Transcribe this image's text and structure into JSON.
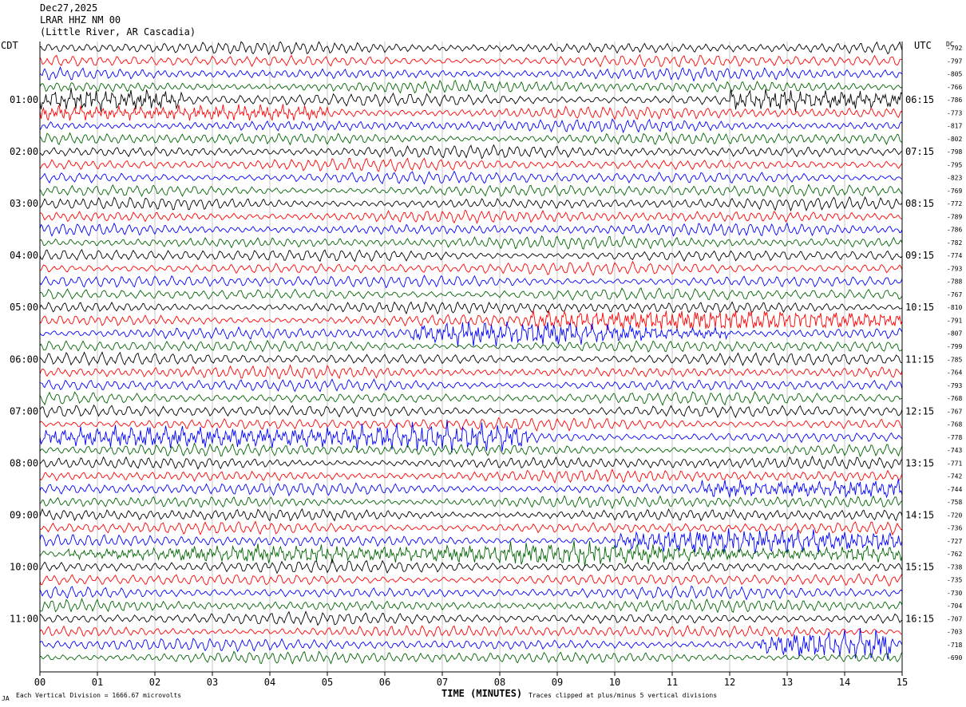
{
  "header": {
    "date": "Dec27,2025",
    "station": "LRAR HHZ NM 00",
    "location": "(Little River, AR Cascadia)"
  },
  "footer": {
    "scale_note": "Each Vertical Division = 1666.67 microvolts",
    "clip_note": "Traces clipped at plus/minus 5 vertical divisions",
    "corner_mark": "JA"
  },
  "colors": {
    "trace_cycle": [
      "#000000",
      "#ff0000",
      "#0000ff",
      "#006400"
    ],
    "grid": "#a0a0a0"
  },
  "chart_data": {
    "type": "line",
    "title": "LRAR HHZ NM 00",
    "xlabel": "TIME (MINUTES)",
    "xlim": [
      0,
      15
    ],
    "x_ticks": [
      "00",
      "01",
      "02",
      "03",
      "04",
      "05",
      "06",
      "07",
      "08",
      "09",
      "10",
      "11",
      "12",
      "13",
      "14",
      "15"
    ],
    "left_axis_label": "CDT",
    "right_axis_label": "UTC",
    "dc_label": "DC",
    "left_hour_labels": [
      "01:00",
      "02:00",
      "03:00",
      "04:00",
      "05:00",
      "06:00",
      "07:00",
      "08:00",
      "09:00",
      "10:00",
      "11:00"
    ],
    "right_hour_labels": [
      "06:15",
      "07:15",
      "08:15",
      "09:15",
      "10:15",
      "11:15",
      "12:15",
      "13:15",
      "14:15",
      "15:15",
      "16:15"
    ],
    "rows_per_hour": 4,
    "dc_offsets": [
      -792,
      -797,
      -805,
      -766,
      -786,
      -773,
      -817,
      -802,
      -798,
      -795,
      -823,
      -769,
      -772,
      -789,
      -786,
      -782,
      -774,
      -793,
      -788,
      -767,
      -810,
      -791,
      -807,
      -799,
      -785,
      -764,
      -793,
      -768,
      -767,
      -768,
      -778,
      -743,
      -771,
      -742,
      -744,
      -758,
      -720,
      -736,
      -727,
      -762,
      -738,
      -735,
      -730,
      -704,
      -707,
      -703,
      -718,
      -690
    ],
    "trace_colors": [
      "black",
      "red",
      "blue",
      "green"
    ],
    "events": [
      {
        "row": 4,
        "start_min": 0.0,
        "end_min": 2.5,
        "amp": 1.6
      },
      {
        "row": 5,
        "start_min": 0.0,
        "end_min": 5.0,
        "amp": 1.3
      },
      {
        "row": 4,
        "start_min": 12.0,
        "end_min": 15.0,
        "amp": 1.7
      },
      {
        "row": 21,
        "start_min": 8.5,
        "end_min": 15.0,
        "amp": 1.6
      },
      {
        "row": 22,
        "start_min": 6.5,
        "end_min": 12.0,
        "amp": 1.6
      },
      {
        "row": 30,
        "start_min": 0.0,
        "end_min": 8.5,
        "amp": 1.7
      },
      {
        "row": 34,
        "start_min": 11.5,
        "end_min": 15.0,
        "amp": 1.5
      },
      {
        "row": 38,
        "start_min": 10.0,
        "end_min": 15.0,
        "amp": 1.6
      },
      {
        "row": 39,
        "start_min": 0.5,
        "end_min": 15.0,
        "amp": 1.4
      },
      {
        "row": 46,
        "start_min": 12.5,
        "end_min": 14.8,
        "amp": 1.8
      }
    ]
  }
}
